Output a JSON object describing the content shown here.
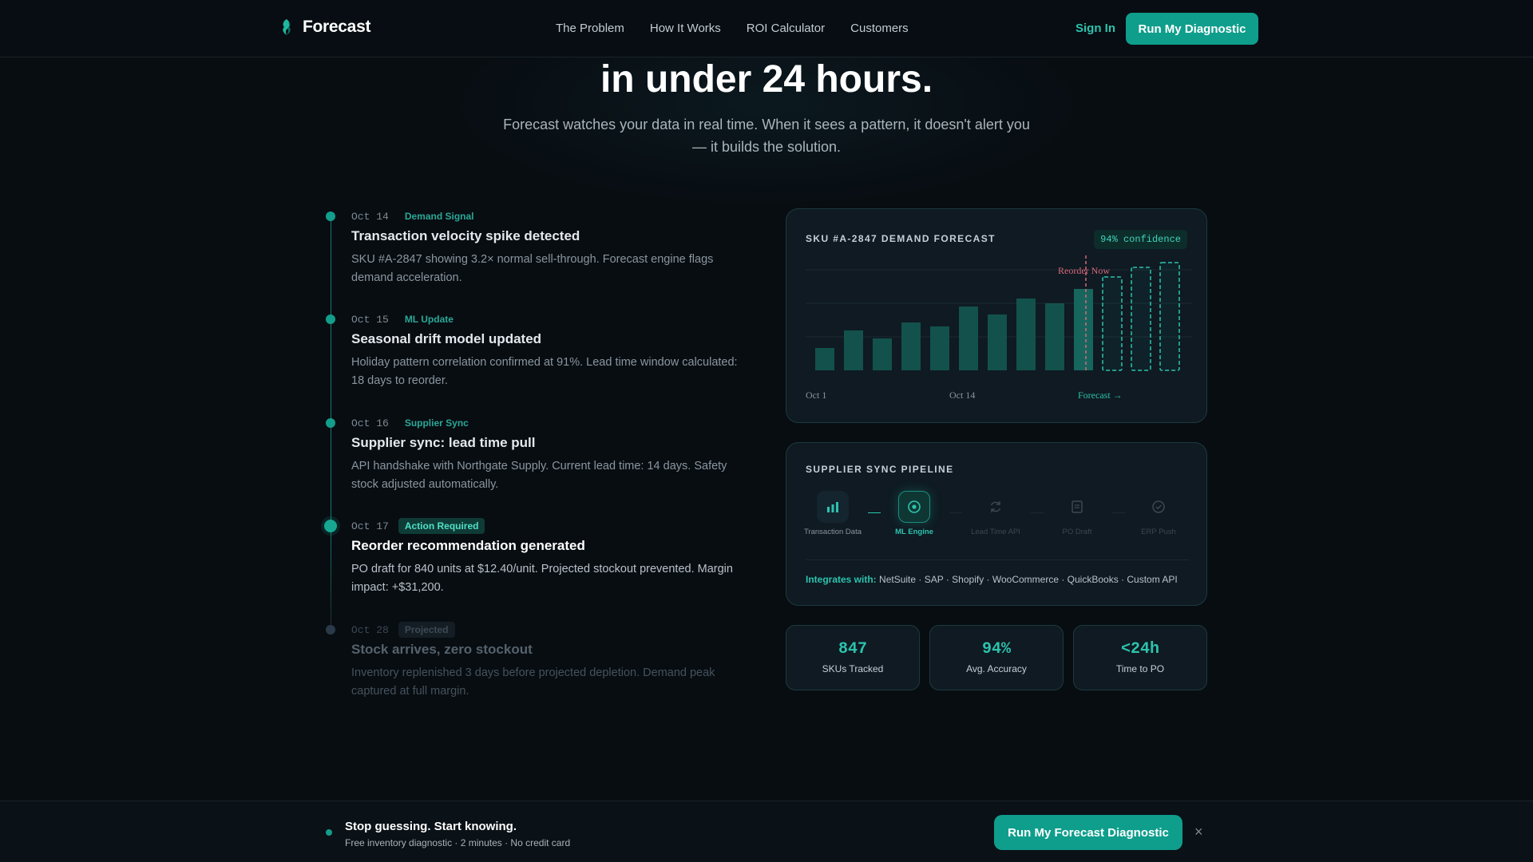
{
  "nav": {
    "brand": "Forecast",
    "links": [
      "The Problem",
      "How It Works",
      "ROI Calculator",
      "Customers"
    ],
    "sign_in": "Sign In",
    "cta": "Run My Diagnostic"
  },
  "hero": {
    "title": "in under 24 hours.",
    "subtitle": "Forecast watches your data in real time. When it sees a pattern, it doesn't alert you — it builds the solution."
  },
  "timeline": [
    {
      "date": "Oct 14",
      "tag": "Demand Signal",
      "title": "Transaction velocity spike detected",
      "desc": "SKU #A-2847 showing 3.2× normal sell-through. Forecast engine flags demand acceleration."
    },
    {
      "date": "Oct 15",
      "tag": "ML Update",
      "title": "Seasonal drift model updated",
      "desc": "Holiday pattern correlation confirmed at 91%. Lead time window calculated: 18 days to reorder."
    },
    {
      "date": "Oct 16",
      "tag": "Supplier Sync",
      "title": "Supplier sync: lead time pull",
      "desc": "API handshake with Northgate Supply. Current lead time: 14 days. Safety stock adjusted automatically."
    },
    {
      "date": "Oct 17",
      "tag": "Action Required",
      "title": "Reorder recommendation generated",
      "desc": "PO draft for 840 units at $12.40/unit. Projected stockout prevented. Margin impact: +$31,200."
    },
    {
      "date": "Oct 28",
      "tag": "Projected",
      "title": "Stock arrives, zero stockout",
      "desc": "Inventory replenished 3 days before projected depletion. Demand peak captured at full margin."
    }
  ],
  "forecast_card": {
    "label": "SKU #A-2847 DEMAND FORECAST",
    "confidence": "94% confidence",
    "reorder_label": "Reorder Now",
    "x_labels": [
      "Oct 1",
      "Oct 14",
      "Forecast →"
    ]
  },
  "chart_data": {
    "type": "bar",
    "title": "SKU #A-2847 DEMAND FORECAST",
    "x_tick_labels": [
      "Oct 1",
      "Oct 14",
      "Forecast →"
    ],
    "series": [
      {
        "values": [
          28,
          50,
          40,
          60,
          55,
          80,
          70,
          90,
          84,
          102
        ]
      },
      {
        "values": [
          117,
          129,
          135
        ]
      }
    ],
    "ylim": [
      0,
      140
    ],
    "grid": true,
    "annotations": [
      "Reorder Now"
    ]
  },
  "pipeline": {
    "label": "SUPPLIER SYNC PIPELINE",
    "steps": [
      {
        "label": "Transaction Data",
        "icon": "bar-chart-icon",
        "state": "done"
      },
      {
        "label": "ML Engine",
        "icon": "target-icon",
        "state": "active"
      },
      {
        "label": "Lead Time API",
        "icon": "refresh-icon",
        "state": "pending"
      },
      {
        "label": "PO Draft",
        "icon": "document-icon",
        "state": "pending"
      },
      {
        "label": "ERP Push",
        "icon": "check-circle-icon",
        "state": "pending"
      }
    ],
    "integrates_label": "Integrates with:",
    "integrates_list": "NetSuite · SAP · Shopify · WooCommerce · QuickBooks · Custom API"
  },
  "stats": [
    {
      "value": "847",
      "label": "SKUs Tracked"
    },
    {
      "value": "94%",
      "label": "Avg. Accuracy"
    },
    {
      "value": "<24h",
      "label": "Time to PO"
    }
  ],
  "bottom_bar": {
    "title": "Stop guessing. Start knowing.",
    "subtitle": "Free inventory diagnostic · 2 minutes · No credit card",
    "cta": "Run My Forecast Diagnostic",
    "close": "×"
  },
  "colors": {
    "accent": "#0f9e8c",
    "accent_text": "#2cc3ae",
    "alert": "#d9667a",
    "background": "#080d12"
  }
}
